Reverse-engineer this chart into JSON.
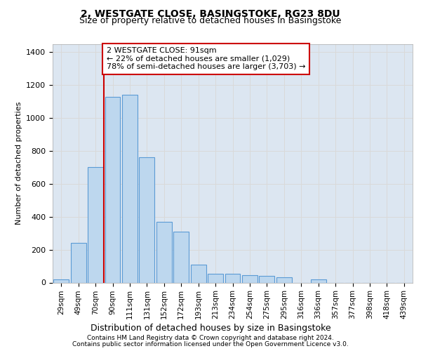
{
  "title1": "2, WESTGATE CLOSE, BASINGSTOKE, RG23 8DU",
  "title2": "Size of property relative to detached houses in Basingstoke",
  "xlabel": "Distribution of detached houses by size in Basingstoke",
  "ylabel": "Number of detached properties",
  "categories": [
    "29sqm",
    "49sqm",
    "70sqm",
    "90sqm",
    "111sqm",
    "131sqm",
    "152sqm",
    "172sqm",
    "193sqm",
    "213sqm",
    "234sqm",
    "254sqm",
    "275sqm",
    "295sqm",
    "316sqm",
    "336sqm",
    "357sqm",
    "377sqm",
    "398sqm",
    "418sqm",
    "439sqm"
  ],
  "values": [
    20,
    240,
    700,
    1130,
    1140,
    760,
    370,
    310,
    110,
    55,
    55,
    45,
    40,
    30,
    0,
    20,
    0,
    0,
    0,
    0,
    0
  ],
  "bar_color": "#bdd7ee",
  "bar_edge_color": "#5b9bd5",
  "bar_edge_width": 0.8,
  "grid_color": "#d9d9d9",
  "plot_bg_color": "#dce6f1",
  "annotation_text": "2 WESTGATE CLOSE: 91sqm\n← 22% of detached houses are smaller (1,029)\n78% of semi-detached houses are larger (3,703) →",
  "annotation_box_color": "#ffffff",
  "annotation_box_edge": "#cc0000",
  "red_line_color": "#cc0000",
  "footer1": "Contains HM Land Registry data © Crown copyright and database right 2024.",
  "footer2": "Contains public sector information licensed under the Open Government Licence v3.0.",
  "ylim": [
    0,
    1450
  ],
  "yticks": [
    0,
    200,
    400,
    600,
    800,
    1000,
    1200,
    1400
  ],
  "title1_fontsize": 10,
  "title2_fontsize": 9,
  "ylabel_fontsize": 8,
  "xlabel_fontsize": 9,
  "footer_fontsize": 6.5,
  "annot_fontsize": 8,
  "xtick_fontsize": 7.5,
  "ytick_fontsize": 8
}
